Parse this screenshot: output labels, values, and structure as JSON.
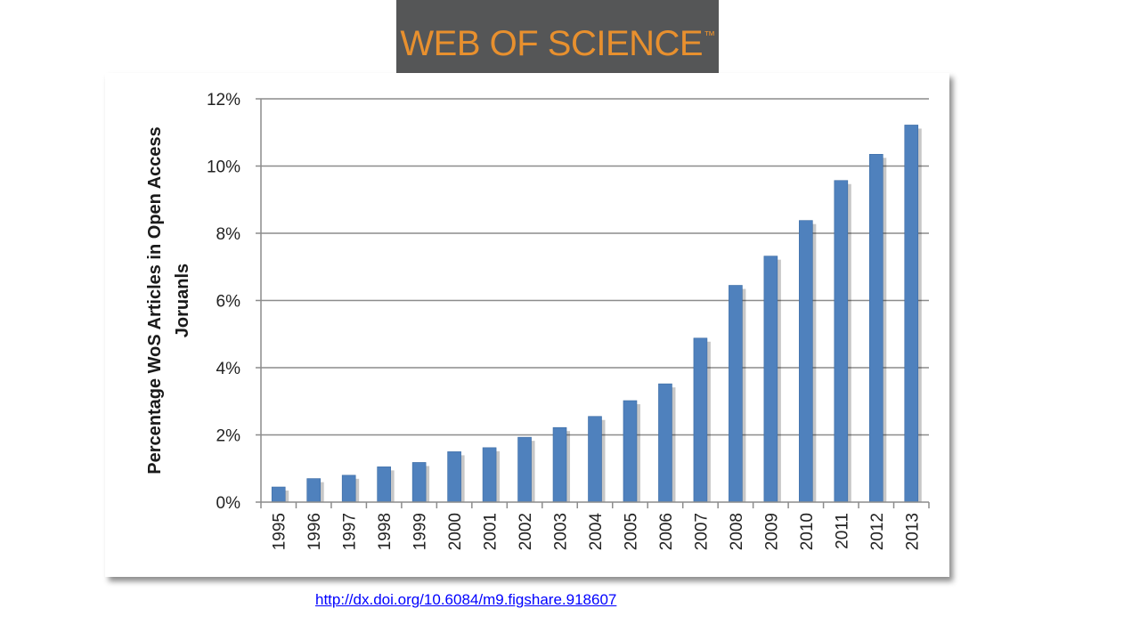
{
  "logo": {
    "text": "WEB OF SCIENCE",
    "tm": "™",
    "background": "#555657",
    "text_color": "#e8902e"
  },
  "source_link": {
    "text": "http://dx.doi.org/10.6084/m9.figshare.918607"
  },
  "chart_data": {
    "type": "bar",
    "title": "",
    "xlabel": "",
    "ylabel": "Percentage WoS Articles in Open Access Joruanls",
    "ylabel_lines": [
      "Percentage WoS Articles in Open Access",
      "Joruanls"
    ],
    "categories": [
      "1995",
      "1996",
      "1997",
      "1998",
      "1999",
      "2000",
      "2001",
      "2002",
      "2003",
      "2004",
      "2005",
      "2006",
      "2007",
      "2008",
      "2009",
      "2010",
      "2011",
      "2012",
      "2013"
    ],
    "values": [
      0.45,
      0.7,
      0.8,
      1.05,
      1.18,
      1.5,
      1.62,
      1.93,
      2.22,
      2.55,
      3.02,
      3.52,
      4.88,
      6.45,
      7.32,
      8.38,
      9.57,
      10.35,
      11.22
    ],
    "ylim": [
      0,
      12
    ],
    "yticks": [
      0,
      2,
      4,
      6,
      8,
      10,
      12
    ],
    "ytick_labels": [
      "0%",
      "2%",
      "4%",
      "6%",
      "8%",
      "10%",
      "12%"
    ],
    "grid": true,
    "legend": "none",
    "bar_color": "#4f81bd"
  }
}
